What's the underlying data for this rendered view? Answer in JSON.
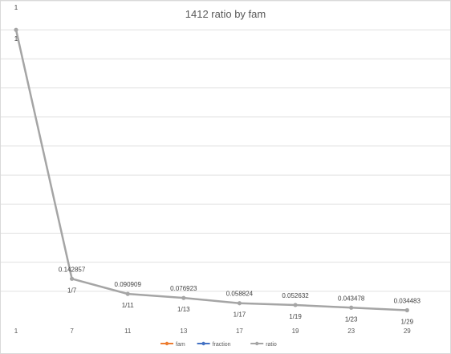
{
  "chart_data": {
    "type": "line",
    "title": "1412 ratio by fam",
    "categories": [
      "1",
      "7",
      "11",
      "13",
      "17",
      "19",
      "23",
      "29"
    ],
    "ylim": [
      0,
      1.1
    ],
    "grid": true,
    "legend_position": "bottom",
    "series": [
      {
        "name": "fam",
        "color": "#ed7d31",
        "values": [
          0,
          0,
          0,
          0,
          0,
          0,
          0,
          0
        ]
      },
      {
        "name": "fraction",
        "color": "#4472c4",
        "values": [
          0,
          0,
          0,
          0,
          0,
          0,
          0,
          0
        ]
      },
      {
        "name": "ratio",
        "color": "#a5a5a5",
        "values": [
          1,
          0.142857,
          0.090909,
          0.076923,
          0.058824,
          0.052632,
          0.043478,
          0.034483
        ],
        "labels_above": [
          "1",
          "0.142857",
          "0.090909",
          "0.076923",
          "0.058824",
          "0.052632",
          "0.043478",
          "0.034483"
        ],
        "labels_below": [
          "1",
          "1/7",
          "1/11",
          "1/13",
          "1/17",
          "1/19",
          "1/23",
          "1/29"
        ]
      }
    ]
  }
}
